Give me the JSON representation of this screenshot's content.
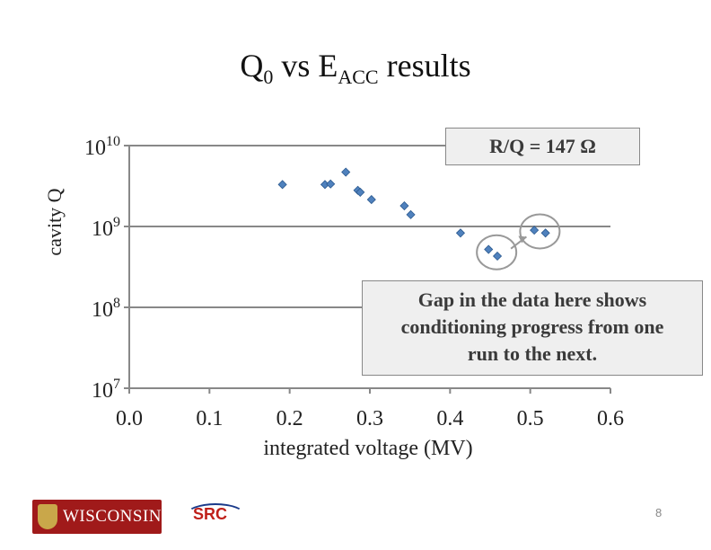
{
  "slide": {
    "title_main": "Q",
    "title_sub0": "0",
    "title_mid": " vs E",
    "title_sub1": "ACC",
    "title_end": " results",
    "page_number": "8"
  },
  "annotations": {
    "rq_label": "R/Q = 147 Ω",
    "note_lines": [
      "Gap in the data here shows",
      "conditioning progress from one",
      "run to the next."
    ]
  },
  "logos": {
    "wisconsin": "WISCONSIN",
    "src": "SRC"
  },
  "chart_data": {
    "type": "scatter",
    "xlabel": "integrated voltage (MV)",
    "ylabel": "cavity Q",
    "xlim": [
      0.0,
      0.6
    ],
    "x_ticks": [
      "0.0",
      "0.1",
      "0.2",
      "0.3",
      "0.4",
      "0.5",
      "0.6"
    ],
    "ylim": [
      10000000,
      10000000000
    ],
    "y_scale": "log",
    "y_ticks": [
      {
        "value": 10000000,
        "base": "10",
        "exp": "7"
      },
      {
        "value": 100000000,
        "base": "10",
        "exp": "8"
      },
      {
        "value": 1000000000,
        "base": "10",
        "exp": "9"
      },
      {
        "value": 10000000000,
        "base": "10",
        "exp": "10"
      }
    ],
    "grid": "horizontal",
    "marker_color": "#4f81bd",
    "series": [
      {
        "points": [
          {
            "x": 0.191,
            "y": 3300000000
          },
          {
            "x": 0.244,
            "y": 3300000000
          },
          {
            "x": 0.251,
            "y": 3350000000
          },
          {
            "x": 0.27,
            "y": 4700000000
          },
          {
            "x": 0.285,
            "y": 2800000000
          },
          {
            "x": 0.288,
            "y": 2650000000
          },
          {
            "x": 0.302,
            "y": 2150000000
          },
          {
            "x": 0.343,
            "y": 1800000000
          },
          {
            "x": 0.351,
            "y": 1400000000
          },
          {
            "x": 0.413,
            "y": 830000000
          },
          {
            "x": 0.448,
            "y": 520000000
          },
          {
            "x": 0.459,
            "y": 430000000
          },
          {
            "x": 0.505,
            "y": 900000000
          },
          {
            "x": 0.519,
            "y": 830000000
          }
        ]
      }
    ],
    "highlight_ellipses": [
      {
        "x_center": 0.458,
        "y_center": 480000000
      },
      {
        "x_center": 0.512,
        "y_center": 870000000
      }
    ]
  }
}
